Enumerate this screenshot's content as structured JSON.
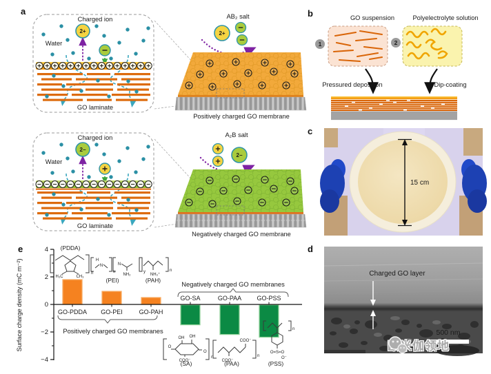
{
  "figure": {
    "panel_labels": {
      "a": "a",
      "b": "b",
      "c": "c",
      "d": "d",
      "e": "e"
    }
  },
  "panel_a": {
    "positive": {
      "charged_ion": "Charged ion",
      "ion": "2+",
      "counter_ion": "−",
      "water": "Water",
      "laminate": "GO laminate",
      "salt": "AB₂ salt",
      "salt_cation": "2+",
      "caption": "Positively charged GO membrane"
    },
    "negative": {
      "charged_ion": "Charged ion",
      "ion": "2−",
      "counter_ion": "+",
      "water": "Water",
      "laminate": "GO laminate",
      "salt": "A₂B salt",
      "salt_anion": "2−",
      "caption": "Negatively charged GO membrane"
    }
  },
  "panel_b": {
    "step1_num": "1",
    "step1_label": "GO suspension",
    "step2_num": "2",
    "step2_label": "Polyelectrolyte solution",
    "method1": "Pressured deposition",
    "method2": "Dip-coating"
  },
  "panel_c": {
    "diameter_label": "15 cm"
  },
  "panel_d": {
    "layer_label": "Charged GO layer",
    "scale_label": "500 nm"
  },
  "watermark": {
    "text": "欧米伽领地"
  },
  "chart_data": {
    "type": "bar",
    "categories": [
      "GO-PDDA",
      "GO-PEI",
      "GO-PAH",
      "GO-SA",
      "GO-PAA",
      "GO-PSS"
    ],
    "values": [
      1.8,
      0.95,
      0.5,
      -1.45,
      -2.15,
      -2.35
    ],
    "title": "",
    "xlabel": "",
    "ylabel": "Surface charge density (mC m⁻²)",
    "ylim": [
      -4,
      4
    ],
    "yticks": [
      -4,
      -2,
      0,
      2,
      4
    ],
    "grid": false,
    "positive_group_label": "Positively charged GO membranes",
    "negative_group_label": "Negatively charged GO membranes",
    "positive_color": "#F58220",
    "negative_color": "#0B8A44",
    "positive_edge": "#F8AD66",
    "negative_edge": "#93D39B",
    "positive_label_color": "#E8590C",
    "negative_label_color": "#3D9B35",
    "polymer_labels": {
      "pdda": "(PDDA)",
      "pei": "(PEI)",
      "pah": "(PAH)",
      "sa": "(SA)",
      "paa": "(PAA)",
      "pss": "(PSS)"
    },
    "structure_atoms": {
      "pdda": [
        "H₃C",
        "CH₃",
        "n"
      ],
      "pei": [
        "H",
        "N",
        "x",
        "N",
        "NH₂",
        "y"
      ],
      "pah": [
        "NH₃⁺",
        "n"
      ],
      "sa": [
        "OH",
        "OH",
        "O",
        "COO⁻",
        "O",
        "n"
      ],
      "paa": [
        "COO⁻",
        "COO⁻",
        "n"
      ],
      "pss": [
        "O=S=O",
        "O⁻",
        "n"
      ]
    }
  }
}
